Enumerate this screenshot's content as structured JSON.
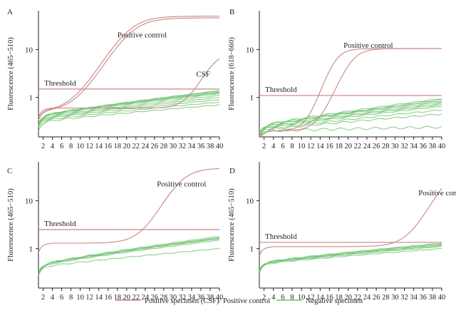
{
  "colors": {
    "positive": "#c98585",
    "negative": "#6fc26f",
    "threshold": "#c98585",
    "axis": "#222222",
    "text": "#222222"
  },
  "legend": {
    "positive_label": "Positive specimen (CSF)/ Positive control",
    "negative_label": "Negative specimen"
  },
  "chart_data": [
    {
      "type": "line",
      "panel_letter": "A",
      "ylabel": "Fluorescence (465−510)",
      "x_ticks": [
        2,
        4,
        6,
        8,
        10,
        12,
        14,
        16,
        18,
        20,
        22,
        24,
        26,
        28,
        30,
        32,
        34,
        36,
        38,
        40
      ],
      "xlim": [
        1,
        40
      ],
      "y_scale": "log",
      "ylim": [
        0.15,
        65
      ],
      "y_ticks": [
        1,
        10
      ],
      "threshold": {
        "label": "Threshold",
        "value": 1.5
      },
      "annotations": [
        {
          "text": "Positive control",
          "x": 18,
          "y": 18
        },
        {
          "text": "CSF",
          "x": 35,
          "y": 2.7
        }
      ],
      "positive_curves": [
        {
          "base": 0.5,
          "plateau": 50,
          "ct": 20.5,
          "k": 0.38
        },
        {
          "base": 0.5,
          "plateau": 46,
          "ct": 21,
          "k": 0.38
        },
        {
          "base": 0.6,
          "plateau": 9,
          "ct": 38.5,
          "k": 0.55
        }
      ],
      "negative_curves": [
        {
          "start": 0.4,
          "end": 1.4
        },
        {
          "start": 0.4,
          "end": 1.3
        },
        {
          "start": 0.4,
          "end": 1.25
        },
        {
          "start": 0.38,
          "end": 1.2
        },
        {
          "start": 0.36,
          "end": 1.1
        },
        {
          "start": 0.35,
          "end": 1.0
        },
        {
          "start": 0.34,
          "end": 0.9
        },
        {
          "start": 0.32,
          "end": 0.8
        },
        {
          "start": 0.3,
          "end": 0.7
        },
        {
          "start": 0.4,
          "end": 1.35
        }
      ]
    },
    {
      "type": "line",
      "panel_letter": "B",
      "ylabel": "Fluorescence (618−660)",
      "x_ticks": [
        2,
        4,
        6,
        8,
        10,
        12,
        14,
        16,
        18,
        20,
        22,
        24,
        26,
        28,
        30,
        32,
        34,
        36,
        38,
        40
      ],
      "xlim": [
        1,
        40
      ],
      "y_scale": "log",
      "ylim": [
        0.15,
        65
      ],
      "y_ticks": [
        1,
        10
      ],
      "threshold": {
        "label": "Threshold",
        "value": 1.1
      },
      "annotations": [
        {
          "text": "Positive control",
          "x": 19,
          "y": 11
        }
      ],
      "positive_curves": [
        {
          "base": 0.2,
          "plateau": 10.5,
          "ct": 17,
          "k": 0.7
        },
        {
          "base": 0.2,
          "plateau": 10.5,
          "ct": 20.5,
          "k": 0.6
        }
      ],
      "negative_curves": [
        {
          "start": 0.25,
          "end": 0.95
        },
        {
          "start": 0.25,
          "end": 0.85
        },
        {
          "start": 0.24,
          "end": 0.8
        },
        {
          "start": 0.22,
          "end": 0.75
        },
        {
          "start": 0.22,
          "end": 0.7
        },
        {
          "start": 0.21,
          "end": 0.65
        },
        {
          "start": 0.2,
          "end": 0.55
        },
        {
          "start": 0.2,
          "end": 0.45
        },
        {
          "start": 0.2,
          "end": 0.24
        },
        {
          "start": 0.23,
          "end": 0.9
        }
      ]
    },
    {
      "type": "line",
      "panel_letter": "C",
      "ylabel": "Fluorescence (465−510)",
      "x_ticks": [
        2,
        4,
        6,
        8,
        10,
        12,
        14,
        16,
        18,
        20,
        22,
        24,
        26,
        28,
        30,
        32,
        34,
        36,
        38,
        40
      ],
      "xlim": [
        1,
        40
      ],
      "y_scale": "log",
      "ylim": [
        0.15,
        65
      ],
      "y_ticks": [
        1,
        10
      ],
      "threshold": {
        "label": "Threshold",
        "value": 2.5
      },
      "annotations": [
        {
          "text": "Positive control",
          "x": 26.5,
          "y": 20
        }
      ],
      "positive_curves": [
        {
          "base": 1.3,
          "plateau": 48,
          "ct": 31.5,
          "k": 0.45
        }
      ],
      "negative_curves": [
        {
          "start": 0.45,
          "end": 1.8
        },
        {
          "start": 0.45,
          "end": 1.7
        },
        {
          "start": 0.44,
          "end": 1.6
        },
        {
          "start": 0.42,
          "end": 1.5
        },
        {
          "start": 0.4,
          "end": 1.0
        },
        {
          "start": 0.43,
          "end": 1.65
        }
      ]
    },
    {
      "type": "line",
      "panel_letter": "D",
      "ylabel": "Fluorescence (465−510)",
      "x_ticks": [
        2,
        4,
        6,
        8,
        10,
        12,
        14,
        16,
        18,
        20,
        22,
        24,
        26,
        28,
        30,
        32,
        34,
        36,
        38,
        40
      ],
      "xlim": [
        1,
        40
      ],
      "y_scale": "log",
      "ylim": [
        0.15,
        65
      ],
      "y_ticks": [
        1,
        10
      ],
      "threshold": {
        "label": "Threshold",
        "value": 1.35
      },
      "annotations": [
        {
          "text": "Positive control",
          "x": 35,
          "y": 13
        }
      ],
      "positive_curves": [
        {
          "base": 1.1,
          "plateau": 60,
          "ct": 42,
          "k": 0.45
        }
      ],
      "negative_curves": [
        {
          "start": 0.5,
          "end": 1.3
        },
        {
          "start": 0.5,
          "end": 1.25
        },
        {
          "start": 0.48,
          "end": 1.2
        },
        {
          "start": 0.47,
          "end": 1.1
        },
        {
          "start": 0.46,
          "end": 1.0
        },
        {
          "start": 0.49,
          "end": 1.15
        }
      ]
    }
  ]
}
